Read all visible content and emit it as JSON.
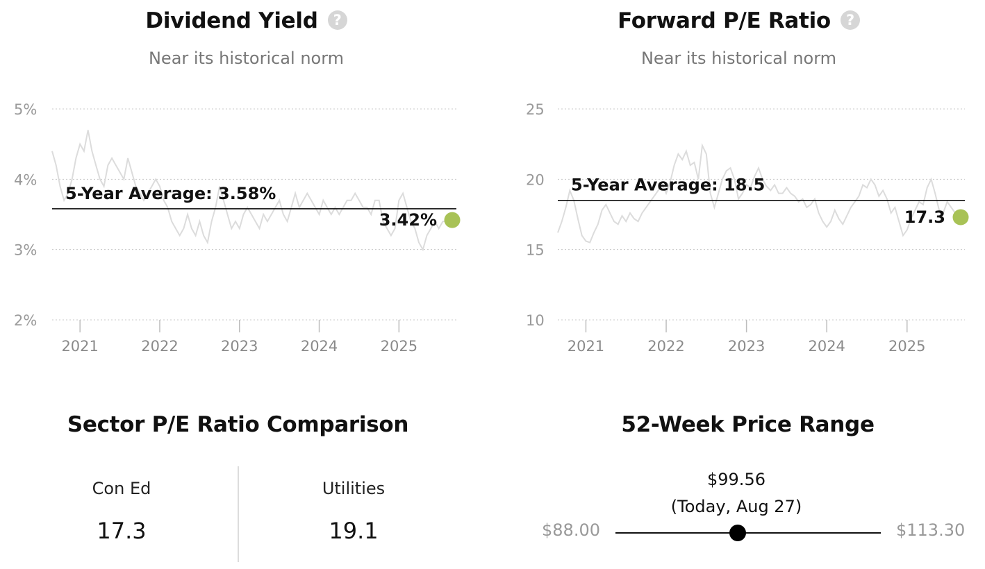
{
  "chart_data": [
    {
      "type": "line",
      "title": "Dividend Yield",
      "subtitle": "Near its historical norm",
      "yunit": "%",
      "ylim": [
        2,
        5
      ],
      "yticks": [
        5,
        4,
        3,
        2
      ],
      "ytick_labels": [
        "5%",
        "4%",
        "3%",
        "2%"
      ],
      "xticks": [
        2021,
        2022,
        2023,
        2024,
        2025
      ],
      "xtick_labels": [
        "2021",
        "2022",
        "2023",
        "2024",
        "2025"
      ],
      "xlim": [
        2020.65,
        2025.72
      ],
      "grid": "horizontal dotted",
      "series_color": "#dcdcdc",
      "series": [
        {
          "x": [
            2020.65,
            2020.7,
            2020.75,
            2020.8,
            2020.85,
            2020.9,
            2020.95,
            2021.0,
            2021.05,
            2021.1,
            2021.15,
            2021.2,
            2021.25,
            2021.3,
            2021.35,
            2021.4,
            2021.45,
            2021.5,
            2021.55,
            2021.6,
            2021.65,
            2021.7,
            2021.75,
            2021.8,
            2021.85,
            2021.9,
            2021.95,
            2022.0,
            2022.05,
            2022.1,
            2022.15,
            2022.2,
            2022.25,
            2022.3,
            2022.35,
            2022.4,
            2022.45,
            2022.5,
            2022.55,
            2022.6,
            2022.65,
            2022.7,
            2022.75,
            2022.8,
            2022.85,
            2022.9,
            2022.95,
            2023.0,
            2023.05,
            2023.1,
            2023.15,
            2023.2,
            2023.25,
            2023.3,
            2023.35,
            2023.4,
            2023.45,
            2023.5,
            2023.55,
            2023.6,
            2023.65,
            2023.7,
            2023.75,
            2023.8,
            2023.85,
            2023.9,
            2023.95,
            2024.0,
            2024.05,
            2024.1,
            2024.15,
            2024.2,
            2024.25,
            2024.3,
            2024.35,
            2024.4,
            2024.45,
            2024.5,
            2024.55,
            2024.6,
            2024.65,
            2024.7,
            2024.75,
            2024.8,
            2024.85,
            2024.9,
            2024.95,
            2025.0,
            2025.05,
            2025.1,
            2025.15,
            2025.2,
            2025.25,
            2025.3,
            2025.35,
            2025.4,
            2025.45,
            2025.5,
            2025.55,
            2025.6,
            2025.65
          ],
          "values": [
            4.4,
            4.2,
            3.9,
            3.7,
            3.8,
            4.0,
            4.3,
            4.5,
            4.4,
            4.7,
            4.4,
            4.2,
            4.0,
            3.9,
            4.2,
            4.3,
            4.2,
            4.1,
            4.0,
            4.3,
            4.1,
            3.9,
            3.8,
            3.7,
            3.8,
            3.9,
            4.0,
            3.9,
            3.7,
            3.6,
            3.4,
            3.3,
            3.2,
            3.3,
            3.5,
            3.3,
            3.2,
            3.4,
            3.2,
            3.1,
            3.4,
            3.6,
            3.9,
            3.7,
            3.5,
            3.3,
            3.4,
            3.3,
            3.5,
            3.6,
            3.5,
            3.4,
            3.3,
            3.5,
            3.4,
            3.5,
            3.6,
            3.7,
            3.5,
            3.4,
            3.6,
            3.8,
            3.6,
            3.7,
            3.8,
            3.7,
            3.6,
            3.5,
            3.7,
            3.6,
            3.5,
            3.6,
            3.5,
            3.6,
            3.7,
            3.7,
            3.8,
            3.7,
            3.6,
            3.6,
            3.5,
            3.7,
            3.7,
            3.4,
            3.3,
            3.2,
            3.3,
            3.7,
            3.8,
            3.6,
            3.4,
            3.3,
            3.1,
            3.0,
            3.2,
            3.3,
            3.4,
            3.3,
            3.4,
            3.4,
            3.42
          ]
        }
      ],
      "average_value": 3.58,
      "average_label": "5-Year Average: 3.58%",
      "current_value": 3.42,
      "current_label": "3.42%",
      "marker_color": "#a8c256"
    },
    {
      "type": "line",
      "title": "Forward P/E Ratio",
      "subtitle": "Near its historical norm",
      "yunit": "",
      "ylim": [
        10,
        25
      ],
      "yticks": [
        25,
        20,
        15,
        10
      ],
      "ytick_labels": [
        "25",
        "20",
        "15",
        "10"
      ],
      "xticks": [
        2021,
        2022,
        2023,
        2024,
        2025
      ],
      "xtick_labels": [
        "2021",
        "2022",
        "2023",
        "2024",
        "2025"
      ],
      "xlim": [
        2020.65,
        2025.72
      ],
      "grid": "horizontal dotted",
      "series_color": "#dcdcdc",
      "series": [
        {
          "x": [
            2020.65,
            2020.7,
            2020.75,
            2020.8,
            2020.85,
            2020.9,
            2020.95,
            2021.0,
            2021.05,
            2021.1,
            2021.15,
            2021.2,
            2021.25,
            2021.3,
            2021.35,
            2021.4,
            2021.45,
            2021.5,
            2021.55,
            2021.6,
            2021.65,
            2021.7,
            2021.75,
            2021.8,
            2021.85,
            2021.9,
            2021.95,
            2022.0,
            2022.05,
            2022.1,
            2022.15,
            2022.2,
            2022.25,
            2022.3,
            2022.35,
            2022.4,
            2022.45,
            2022.5,
            2022.55,
            2022.6,
            2022.65,
            2022.7,
            2022.75,
            2022.8,
            2022.85,
            2022.9,
            2022.95,
            2023.0,
            2023.05,
            2023.1,
            2023.15,
            2023.2,
            2023.25,
            2023.3,
            2023.35,
            2023.4,
            2023.45,
            2023.5,
            2023.55,
            2023.6,
            2023.65,
            2023.7,
            2023.75,
            2023.8,
            2023.85,
            2023.9,
            2023.95,
            2024.0,
            2024.05,
            2024.1,
            2024.15,
            2024.2,
            2024.25,
            2024.3,
            2024.35,
            2024.4,
            2024.45,
            2024.5,
            2024.55,
            2024.6,
            2024.65,
            2024.7,
            2024.75,
            2024.8,
            2024.85,
            2024.9,
            2024.95,
            2025.0,
            2025.05,
            2025.1,
            2025.15,
            2025.2,
            2025.25,
            2025.3,
            2025.35,
            2025.4,
            2025.45,
            2025.5,
            2025.55,
            2025.6,
            2025.65
          ],
          "values": [
            16.2,
            17.0,
            18.0,
            19.2,
            18.5,
            17.2,
            16.0,
            15.6,
            15.5,
            16.2,
            16.8,
            17.8,
            18.2,
            17.6,
            17.0,
            16.8,
            17.4,
            17.0,
            17.6,
            17.2,
            17.0,
            17.6,
            18.0,
            18.4,
            18.8,
            19.2,
            19.6,
            19.0,
            19.8,
            21.0,
            21.8,
            21.4,
            22.0,
            21.0,
            21.2,
            20.0,
            22.4,
            21.8,
            19.0,
            18.0,
            19.0,
            20.0,
            20.6,
            20.8,
            20.0,
            18.6,
            19.0,
            19.6,
            19.4,
            20.2,
            20.8,
            20.0,
            19.5,
            19.2,
            19.6,
            19.0,
            19.0,
            19.4,
            19.0,
            18.8,
            18.4,
            18.6,
            18.0,
            18.2,
            18.6,
            17.6,
            17.0,
            16.6,
            17.0,
            17.8,
            17.2,
            16.8,
            17.4,
            18.0,
            18.4,
            18.8,
            19.6,
            19.4,
            20.0,
            19.6,
            18.8,
            19.2,
            18.6,
            17.6,
            18.0,
            17.0,
            16.0,
            16.4,
            17.2,
            17.8,
            18.4,
            18.2,
            19.4,
            20.0,
            19.0,
            17.8,
            17.6,
            18.4,
            18.0,
            17.6,
            17.3
          ]
        }
      ],
      "average_value": 18.5,
      "average_label": "5-Year Average: 18.5",
      "current_value": 17.3,
      "current_label": "17.3",
      "marker_color": "#a8c256"
    }
  ],
  "sector_comparison": {
    "title": "Sector P/E Ratio Comparison",
    "items": [
      {
        "label": "Con Ed",
        "value": "17.3"
      },
      {
        "label": "Utilities",
        "value": "19.1"
      }
    ]
  },
  "price_range": {
    "title": "52-Week Price Range",
    "current_price": "$99.56",
    "current_note": "(Today, Aug 27)",
    "low": "$88.00",
    "high": "$113.30",
    "position_fraction": 0.46
  },
  "help_icon": "question-circle-icon"
}
